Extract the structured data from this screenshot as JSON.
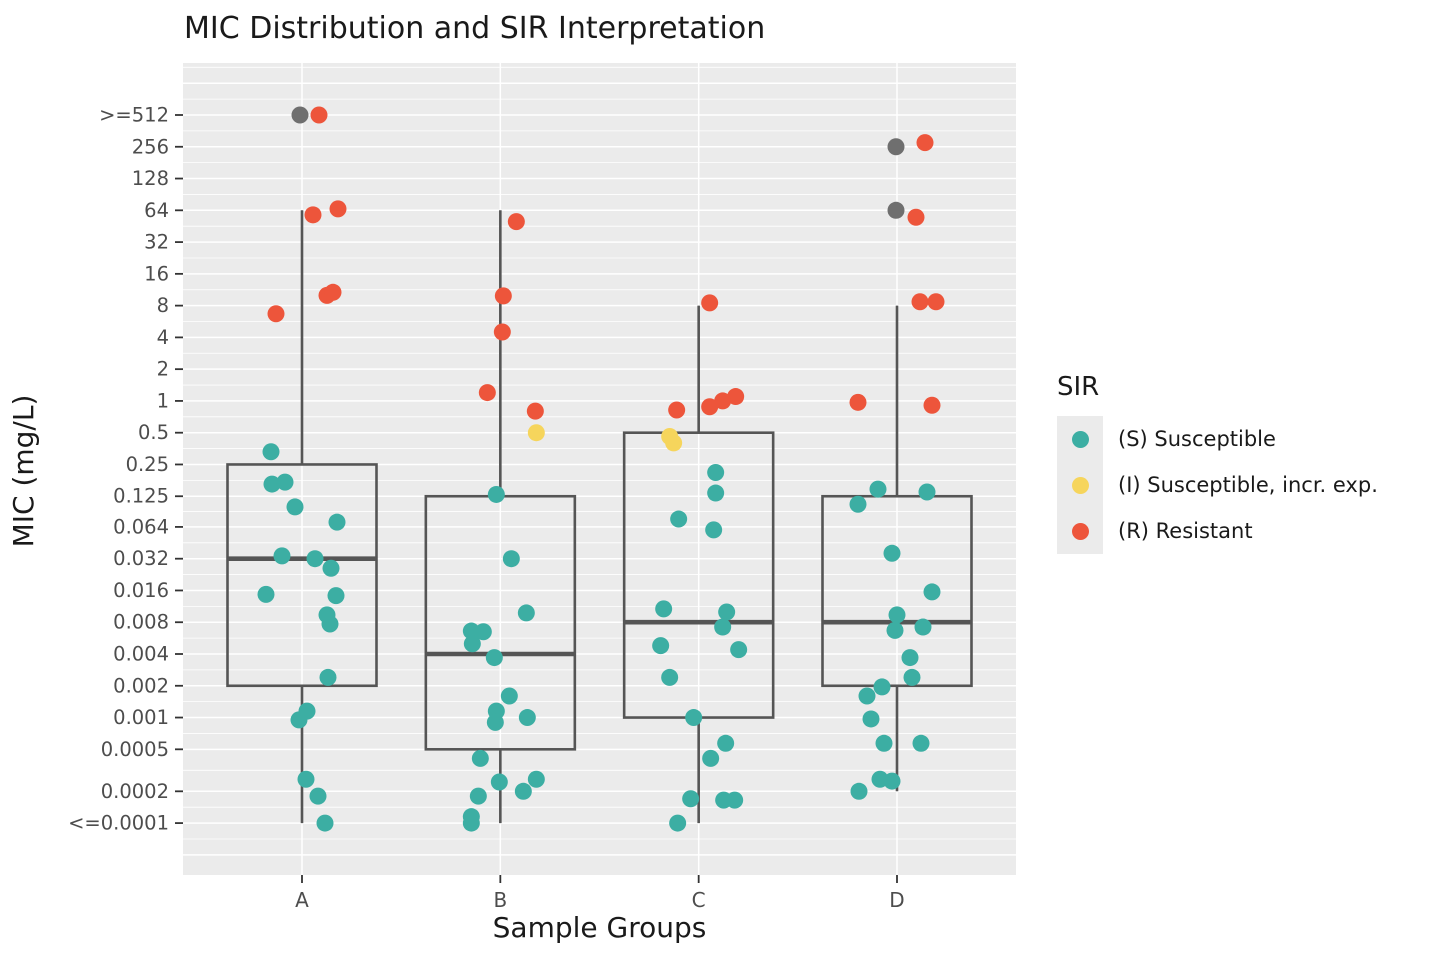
{
  "title": "MIC Distribution and SIR Interpretation",
  "axes": {
    "x_title": "Sample Groups",
    "y_title": "MIC (mg/L)",
    "x_categories": [
      "A",
      "B",
      "C",
      "D"
    ],
    "y_breaks": [
      {
        "label": ">=512",
        "value": 512
      },
      {
        "label": "256",
        "value": 256
      },
      {
        "label": "128",
        "value": 128
      },
      {
        "label": "64",
        "value": 64
      },
      {
        "label": "32",
        "value": 32
      },
      {
        "label": "16",
        "value": 16
      },
      {
        "label": "8",
        "value": 8
      },
      {
        "label": "4",
        "value": 4
      },
      {
        "label": "2",
        "value": 2
      },
      {
        "label": "1",
        "value": 1
      },
      {
        "label": "0.5",
        "value": 0.5
      },
      {
        "label": "0.25",
        "value": 0.25
      },
      {
        "label": "0.125",
        "value": 0.125
      },
      {
        "label": "0.064",
        "value": 0.064
      },
      {
        "label": "0.032",
        "value": 0.032
      },
      {
        "label": "0.016",
        "value": 0.016
      },
      {
        "label": "0.008",
        "value": 0.008
      },
      {
        "label": "0.004",
        "value": 0.004
      },
      {
        "label": "0.002",
        "value": 0.002
      },
      {
        "label": "0.001",
        "value": 0.001
      },
      {
        "label": "0.0005",
        "value": 0.0005
      },
      {
        "label": "0.0002",
        "value": 0.0002
      },
      {
        "label": "<=0.0001",
        "value": 0.0001
      }
    ]
  },
  "legend": {
    "title": "SIR",
    "entries": [
      {
        "sir": "S",
        "label": "(S) Susceptible"
      },
      {
        "sir": "I",
        "label": "(I) Susceptible, incr. exp."
      },
      {
        "sir": "R",
        "label": "(R) Resistant"
      }
    ]
  },
  "colors": {
    "panel_bg": "#EBEBEB",
    "grid": "#FFFFFF",
    "box_stroke": "#555555",
    "tick": "#333333",
    "tick_label": "#4d4d4d",
    "sir": {
      "S": "#3CAEA3",
      "I": "#F6D55C",
      "R": "#ED553B",
      "NA": "#6F6F6F"
    }
  },
  "chart_data": {
    "type": "boxplot_jitter",
    "y_scale": "log2",
    "categories": [
      "A",
      "B",
      "C",
      "D"
    ],
    "grid_major_values": [
      1024,
      512,
      256,
      128,
      64,
      32,
      16,
      8,
      4,
      2,
      1,
      0.5,
      0.25,
      0.125,
      0.064,
      0.032,
      0.016,
      0.008,
      0.004,
      0.002,
      0.001,
      0.0005,
      0.0002,
      0.0001,
      5e-05
    ],
    "boxes": [
      {
        "group": "A",
        "whisker_low": 0.0001,
        "q1": 0.002,
        "median": 0.032,
        "q3": 0.25,
        "whisker_high": 64
      },
      {
        "group": "B",
        "whisker_low": 0.0001,
        "q1": 0.0005,
        "median": 0.004,
        "q3": 0.125,
        "whisker_high": 64
      },
      {
        "group": "C",
        "whisker_low": 0.0001,
        "q1": 0.001,
        "median": 0.008,
        "q3": 0.5,
        "whisker_high": 8
      },
      {
        "group": "D",
        "whisker_low": 0.0002,
        "q1": 0.002,
        "median": 0.008,
        "q3": 0.125,
        "whisker_high": 8
      }
    ],
    "points": [
      [
        0,
        -2,
        512,
        "NA"
      ],
      [
        0,
        17,
        512,
        "R"
      ],
      [
        0,
        11,
        58,
        "R"
      ],
      [
        0,
        36,
        66,
        "R"
      ],
      [
        0,
        25,
        10,
        "R"
      ],
      [
        0,
        31,
        10.7,
        "R"
      ],
      [
        0,
        -26,
        6.7,
        "R"
      ],
      [
        0,
        -31,
        0.33,
        "S"
      ],
      [
        0,
        -30,
        0.163,
        "S"
      ],
      [
        0,
        -17,
        0.17,
        "S"
      ],
      [
        0,
        -7,
        0.099,
        "S"
      ],
      [
        0,
        35,
        0.071,
        "S"
      ],
      [
        0,
        -20,
        0.034,
        "S"
      ],
      [
        0,
        13,
        0.032,
        "S"
      ],
      [
        0,
        29,
        0.026,
        "S"
      ],
      [
        0,
        -36,
        0.0147,
        "S"
      ],
      [
        0,
        34,
        0.0143,
        "S"
      ],
      [
        0,
        25,
        0.0094,
        "S"
      ],
      [
        0,
        28,
        0.0077,
        "S"
      ],
      [
        0,
        26,
        0.0024,
        "S"
      ],
      [
        0,
        5,
        0.00115,
        "S"
      ],
      [
        0,
        -3,
        0.00095,
        "S"
      ],
      [
        0,
        4,
        0.00026,
        "S"
      ],
      [
        0,
        16,
        0.00018,
        "S"
      ],
      [
        0,
        23,
        0.0001,
        "S"
      ],
      [
        1,
        16,
        50,
        "R"
      ],
      [
        1,
        3,
        9.9,
        "R"
      ],
      [
        1,
        2,
        4.5,
        "R"
      ],
      [
        1,
        -13,
        1.2,
        "R"
      ],
      [
        1,
        35,
        0.8,
        "R"
      ],
      [
        1,
        36,
        0.5,
        "I"
      ],
      [
        1,
        -4,
        0.13,
        "S"
      ],
      [
        1,
        11,
        0.032,
        "S"
      ],
      [
        1,
        26,
        0.0098,
        "S"
      ],
      [
        1,
        -29,
        0.0066,
        "S"
      ],
      [
        1,
        -17,
        0.0065,
        "S"
      ],
      [
        1,
        -28,
        0.005,
        "S"
      ],
      [
        1,
        -6,
        0.0037,
        "S"
      ],
      [
        1,
        9,
        0.0016,
        "S"
      ],
      [
        1,
        -4,
        0.00115,
        "S"
      ],
      [
        1,
        27,
        0.001,
        "S"
      ],
      [
        1,
        -5,
        0.0009,
        "S"
      ],
      [
        1,
        -20,
        0.00041,
        "S"
      ],
      [
        1,
        36,
        0.00026,
        "S"
      ],
      [
        1,
        -1,
        0.000245,
        "S"
      ],
      [
        1,
        23,
        0.0002,
        "S"
      ],
      [
        1,
        -22,
        0.00018,
        "S"
      ],
      [
        1,
        -29,
        0.000115,
        "S"
      ],
      [
        1,
        -29,
        0.0001,
        "S"
      ],
      [
        2,
        11,
        8.5,
        "R"
      ],
      [
        2,
        37,
        1.1,
        "R"
      ],
      [
        2,
        24,
        1.0,
        "R"
      ],
      [
        2,
        11,
        0.88,
        "R"
      ],
      [
        2,
        -22,
        0.82,
        "R"
      ],
      [
        2,
        -29,
        0.46,
        "I"
      ],
      [
        2,
        -25,
        0.4,
        "I"
      ],
      [
        2,
        17,
        0.21,
        "S"
      ],
      [
        2,
        17,
        0.134,
        "S"
      ],
      [
        2,
        -20,
        0.076,
        "S"
      ],
      [
        2,
        15,
        0.06,
        "S"
      ],
      [
        2,
        -35,
        0.0107,
        "S"
      ],
      [
        2,
        28,
        0.01,
        "S"
      ],
      [
        2,
        24,
        0.0072,
        "S"
      ],
      [
        2,
        -38,
        0.0048,
        "S"
      ],
      [
        2,
        40,
        0.0044,
        "S"
      ],
      [
        2,
        -29,
        0.0024,
        "S"
      ],
      [
        2,
        -5,
        0.001,
        "S"
      ],
      [
        2,
        27,
        0.00057,
        "S"
      ],
      [
        2,
        12,
        0.00041,
        "S"
      ],
      [
        2,
        -8,
        0.00017,
        "S"
      ],
      [
        2,
        25,
        0.000165,
        "S"
      ],
      [
        2,
        36,
        0.000165,
        "S"
      ],
      [
        2,
        -21,
        0.0001,
        "S"
      ],
      [
        3,
        -1,
        256,
        "NA"
      ],
      [
        3,
        -1,
        64,
        "NA"
      ],
      [
        3,
        28,
        280,
        "R"
      ],
      [
        3,
        19,
        55,
        "R"
      ],
      [
        3,
        23,
        8.7,
        "R"
      ],
      [
        3,
        39,
        8.7,
        "R"
      ],
      [
        3,
        -39,
        0.97,
        "R"
      ],
      [
        3,
        35,
        0.91,
        "R"
      ],
      [
        3,
        -19,
        0.146,
        "S"
      ],
      [
        3,
        30,
        0.137,
        "S"
      ],
      [
        3,
        -39,
        0.105,
        "S"
      ],
      [
        3,
        -5,
        0.036,
        "S"
      ],
      [
        3,
        35,
        0.0155,
        "S"
      ],
      [
        3,
        0,
        0.0094,
        "S"
      ],
      [
        3,
        26,
        0.0072,
        "S"
      ],
      [
        3,
        -2,
        0.0067,
        "S"
      ],
      [
        3,
        13,
        0.0037,
        "S"
      ],
      [
        3,
        15,
        0.0024,
        "S"
      ],
      [
        3,
        -15,
        0.00195,
        "S"
      ],
      [
        3,
        -30,
        0.0016,
        "S"
      ],
      [
        3,
        -26,
        0.00097,
        "S"
      ],
      [
        3,
        -13,
        0.00057,
        "S"
      ],
      [
        3,
        24,
        0.00057,
        "S"
      ],
      [
        3,
        -17,
        0.00026,
        "S"
      ],
      [
        3,
        -5,
        0.00025,
        "S"
      ],
      [
        3,
        -38,
        0.0002,
        "S"
      ]
    ]
  }
}
